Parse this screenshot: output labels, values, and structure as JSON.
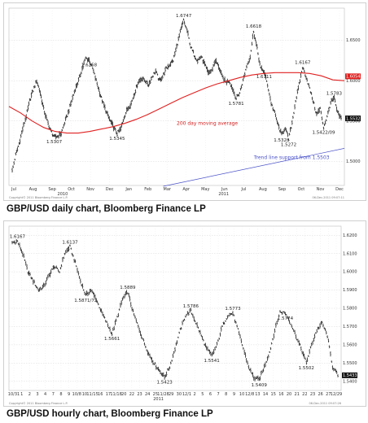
{
  "captions": {
    "daily": "GBP/USD daily chart, Bloomberg Finance LP",
    "hourly": "GBP/USD hourly chart, Bloomberg Finance LP"
  },
  "chart_data": [
    {
      "type": "line",
      "style": "ohlc-bars",
      "title": "GBP/USD daily chart, Bloomberg Finance LP",
      "ylim": [
        1.47,
        1.69
      ],
      "y_ticks": [
        "1.6500",
        "1.6000",
        "1.5500",
        "1.5000"
      ],
      "x_ticks": [
        "Jul",
        "Aug",
        "Sep",
        "Oct",
        "Nov",
        "Dec",
        "Jan",
        "Feb",
        "Mar",
        "Apr",
        "May",
        "Jun",
        "Jul",
        "Aug",
        "Sep",
        "Oct",
        "Nov",
        "Dec"
      ],
      "year_labels": [
        "2010",
        "2011"
      ],
      "grid": true,
      "series": [
        {
          "name": "GBP/USD",
          "color": "#111111",
          "values": [
            1.488,
            1.508,
            1.522,
            1.54,
            1.556,
            1.575,
            1.588,
            1.6,
            1.585,
            1.565,
            1.55,
            1.538,
            1.53,
            1.531,
            1.535,
            1.548,
            1.56,
            1.575,
            1.59,
            1.6,
            1.615,
            1.628,
            1.6258,
            1.615,
            1.6,
            1.585,
            1.572,
            1.56,
            1.55,
            1.542,
            1.5345,
            1.54,
            1.555,
            1.565,
            1.572,
            1.585,
            1.598,
            1.603,
            1.6,
            1.595,
            1.605,
            1.612,
            1.6,
            1.605,
            1.615,
            1.62,
            1.625,
            1.642,
            1.66,
            1.6747,
            1.662,
            1.642,
            1.632,
            1.625,
            1.63,
            1.62,
            1.61,
            1.612,
            1.625,
            1.618,
            1.605,
            1.598,
            1.6,
            1.59,
            1.5781,
            1.585,
            1.6,
            1.618,
            1.63,
            1.6618,
            1.64,
            1.615,
            1.6111,
            1.595,
            1.572,
            1.56,
            1.545,
            1.5328,
            1.542,
            1.5272,
            1.548,
            1.575,
            1.595,
            1.6167,
            1.605,
            1.59,
            1.575,
            1.558,
            1.5652,
            1.5422,
            1.555,
            1.573,
            1.5783,
            1.56,
            1.553
          ]
        },
        {
          "name": "200 day moving average",
          "color": "#e02020",
          "values": [
            1.568,
            1.56,
            1.55,
            1.542,
            1.537,
            1.535,
            1.535,
            1.537,
            1.54,
            1.543,
            1.547,
            1.552,
            1.558,
            1.565,
            1.572,
            1.579,
            1.585,
            1.591,
            1.596,
            1.6,
            1.604,
            1.607,
            1.609,
            1.61,
            1.61,
            1.61,
            1.609,
            1.606,
            1.601,
            1.6
          ]
        },
        {
          "name": "Trend line support from 1.5503",
          "color": "#4a52c8",
          "values": [
            1.469,
            1.516
          ]
        }
      ],
      "annotations": [
        {
          "text": "1.5307",
          "x_index": 12,
          "value": 1.5307
        },
        {
          "text": "1.6258",
          "x_index": 22,
          "value": 1.6258
        },
        {
          "text": "1.5345",
          "x_index": 30,
          "value": 1.5345
        },
        {
          "text": "1.6747",
          "x_index": 49,
          "value": 1.6747
        },
        {
          "text": "1.5781",
          "x_index": 64,
          "value": 1.5781
        },
        {
          "text": "1.6618",
          "x_index": 69,
          "value": 1.6618
        },
        {
          "text": "1.6111",
          "x_index": 72,
          "value": 1.6111
        },
        {
          "text": "1.5328",
          "x_index": 77,
          "value": 1.5328
        },
        {
          "text": "1.5272",
          "x_index": 79,
          "value": 1.5272
        },
        {
          "text": "1.6167",
          "x_index": 83,
          "value": 1.6167
        },
        {
          "text": "1.5783",
          "x_index": 92,
          "value": 1.5783
        },
        {
          "text": "1.5422/09",
          "x_index": 89,
          "value": 1.5422
        }
      ],
      "series_labels": {
        "ma": "200 day moving average",
        "trend": "Trend line support from 1.5503"
      },
      "last_value_tags": [
        {
          "text": "1.6054",
          "value": 1.6054,
          "color": "#e02020"
        },
        {
          "text": "1.5532",
          "value": 1.5532,
          "color": "#111111"
        }
      ],
      "footer": {
        "left": "Copyright© 2011 Bloomberg Finance L.P.",
        "right": "06-Dec-2011 09:07:11"
      }
    },
    {
      "type": "line",
      "style": "ohlc-bars",
      "title": "GBP/USD hourly chart, Bloomberg Finance LP",
      "ylim": [
        1.535,
        1.625
      ],
      "y_ticks": [
        "1.6200",
        "1.6100",
        "1.6000",
        "1.5900",
        "1.5800",
        "1.5700",
        "1.5600",
        "1.5500",
        "1.5400"
      ],
      "x_ticks": [
        "10/31",
        "1",
        "2",
        "3",
        "4",
        "7",
        "8",
        "9",
        "10/8",
        "10",
        "11/15",
        "16",
        "17",
        "11/18",
        "20",
        "22",
        "23",
        "24",
        "25",
        "11/28",
        "29",
        "30",
        "12/1",
        "2",
        "5",
        "6",
        "7",
        "8",
        "9",
        "10",
        "12/8",
        "13",
        "14",
        "15",
        "16",
        "20",
        "21",
        "22",
        "23",
        "26",
        "27",
        "12/29"
      ],
      "year_labels": [
        "2011"
      ],
      "grid": true,
      "series": [
        {
          "name": "GBP/USD",
          "color": "#111111",
          "values": [
            1.616,
            1.6167,
            1.61,
            1.6,
            1.595,
            1.59,
            1.592,
            1.598,
            1.603,
            1.6,
            1.61,
            1.6137,
            1.605,
            1.595,
            1.5871,
            1.59,
            1.585,
            1.578,
            1.572,
            1.5661,
            1.575,
            1.585,
            1.5889,
            1.578,
            1.57,
            1.562,
            1.555,
            1.55,
            1.546,
            1.5423,
            1.548,
            1.558,
            1.568,
            1.576,
            1.5786,
            1.572,
            1.565,
            1.558,
            1.5541,
            1.56,
            1.57,
            1.576,
            1.5773,
            1.568,
            1.558,
            1.548,
            1.542,
            1.5409,
            1.548,
            1.556,
            1.568,
            1.578,
            1.5774,
            1.572,
            1.565,
            1.558,
            1.5502,
            1.56,
            1.568,
            1.572,
            1.565,
            1.548,
            1.5433
          ]
        }
      ],
      "annotations": [
        {
          "text": "1.6167",
          "x_index": 1,
          "value": 1.6167
        },
        {
          "text": "1.6137",
          "x_index": 11,
          "value": 1.6137
        },
        {
          "text": "1.5871/72",
          "x_index": 14,
          "value": 1.5871
        },
        {
          "text": "1.5889",
          "x_index": 22,
          "value": 1.5889
        },
        {
          "text": "1.5661",
          "x_index": 19,
          "value": 1.5661
        },
        {
          "text": "1.5423",
          "x_index": 29,
          "value": 1.5423
        },
        {
          "text": "1.5786",
          "x_index": 34,
          "value": 1.5786
        },
        {
          "text": "1.5541",
          "x_index": 38,
          "value": 1.5541
        },
        {
          "text": "1.5773",
          "x_index": 42,
          "value": 1.5773
        },
        {
          "text": "1.5409",
          "x_index": 47,
          "value": 1.5409
        },
        {
          "text": "1.5774",
          "x_index": 52,
          "value": 1.5774
        },
        {
          "text": "1.5502",
          "x_index": 56,
          "value": 1.5502
        }
      ],
      "last_value_tags": [
        {
          "text": "1.5433",
          "value": 1.5433,
          "color": "#111111"
        }
      ],
      "footer": {
        "left": "Copyright© 2011 Bloomberg Finance L.P.",
        "right": "06-Dec-2011 09:07:26"
      }
    }
  ]
}
